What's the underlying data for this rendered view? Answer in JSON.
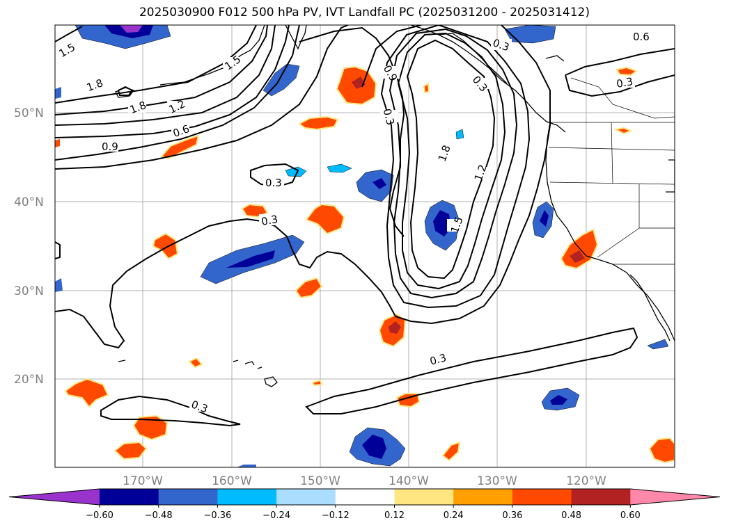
{
  "title": "2025030900 F012 500 hPa PV, IVT Landfall PC (2025031200 - 2025031412)",
  "map": {
    "lat_labels": [
      "50°N",
      "40°N",
      "30°N",
      "20°N"
    ],
    "lon_labels": [
      "170°W",
      "160°W",
      "150°W",
      "140°W",
      "130°W",
      "120°W"
    ],
    "contour_labels": [
      "1.5",
      "1.5",
      "1.8",
      "1.8",
      "1.2",
      "0.6",
      "0.9",
      "0.3",
      "0.3",
      "0.9",
      "0.3",
      "1.8",
      "1.2",
      "1.5",
      "0.3",
      "0.3",
      "0.6",
      "0.3",
      "0.3",
      "0.3"
    ]
  },
  "colorbar": {
    "ticks": [
      "−0.60",
      "−0.48",
      "−0.36",
      "−0.24",
      "−0.12",
      "0.12",
      "0.24",
      "0.36",
      "0.48",
      "0.60"
    ],
    "colors": [
      "#9933cc",
      "#000099",
      "#3366cc",
      "#00bbff",
      "#aaddff",
      "#ffffff",
      "#ffe680",
      "#ffa000",
      "#ff4800",
      "#b22222",
      "#ff88aa"
    ]
  }
}
